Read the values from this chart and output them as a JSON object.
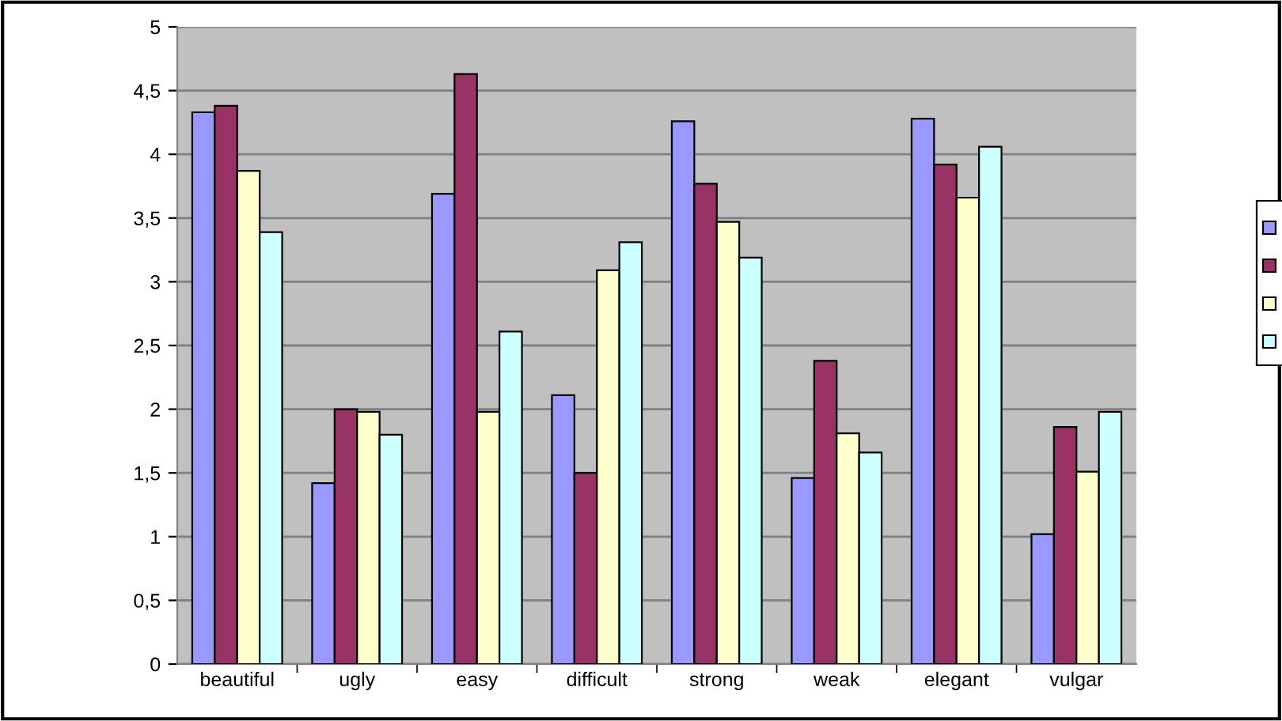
{
  "chart_data": {
    "type": "bar",
    "categories": [
      "beautiful",
      "ugly",
      "easy",
      "difficult",
      "strong",
      "weak",
      "elegant",
      "vulgar"
    ],
    "series": [
      {
        "color": "#9999ff",
        "values": [
          4.33,
          1.42,
          3.69,
          2.11,
          4.26,
          1.46,
          4.28,
          1.02
        ]
      },
      {
        "color": "#993366",
        "values": [
          4.38,
          2.0,
          4.63,
          1.5,
          3.77,
          2.38,
          3.92,
          1.86
        ]
      },
      {
        "color": "#ffffcc",
        "values": [
          3.87,
          1.98,
          1.98,
          3.09,
          3.47,
          1.81,
          3.66,
          1.51
        ]
      },
      {
        "color": "#ccffff",
        "values": [
          3.39,
          1.8,
          2.61,
          3.31,
          3.19,
          1.66,
          4.06,
          1.98
        ]
      }
    ],
    "ylim": [
      0,
      5
    ],
    "yticks": [
      0,
      {
        "value": 0.5,
        "label": "0,5"
      },
      1,
      {
        "value": 1.5,
        "label": "1,5"
      },
      2,
      {
        "value": 2.5,
        "label": "2,5"
      },
      3,
      {
        "value": 3.5,
        "label": "3,5"
      },
      4,
      {
        "value": 4.5,
        "label": "4,5"
      },
      5
    ],
    "grid": "y"
  }
}
